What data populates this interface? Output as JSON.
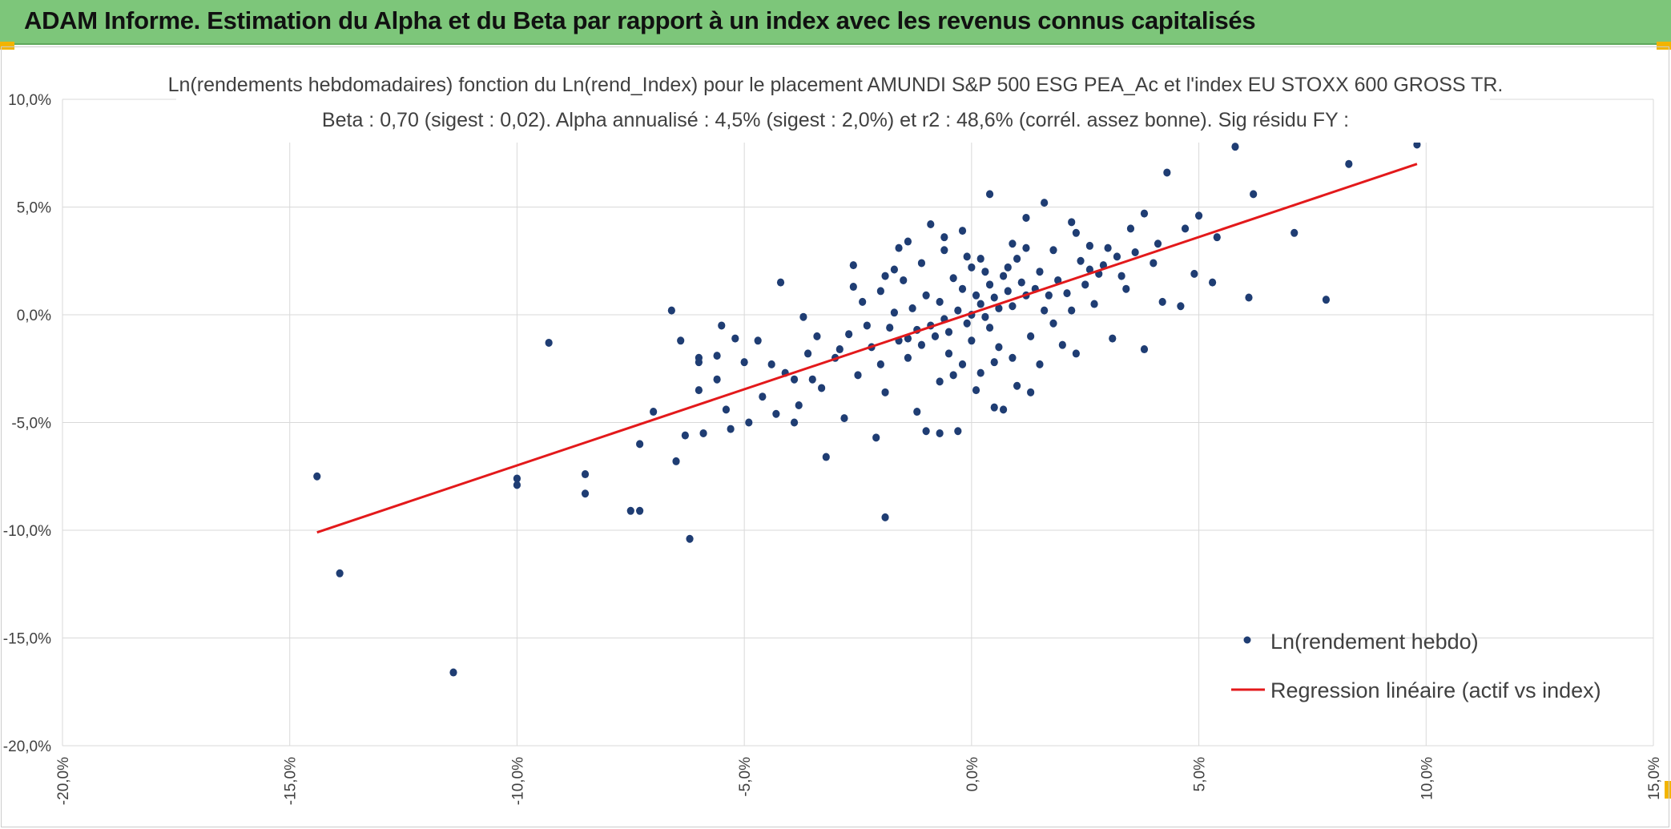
{
  "header": {
    "title": "ADAM Informe. Estimation du Alpha et du Beta par rapport à un index avec les revenus connus capitalisés"
  },
  "colors": {
    "header_bg": "#7dc67a",
    "points": "#1f3d73",
    "regression": "#e3191b",
    "grid": "#d9d9d9",
    "accent": "#f2b400"
  },
  "chart_data": {
    "type": "scatter",
    "title": "Ln(rendements hebdomadaires) fonction du Ln(rend_Index) pour le placement AMUNDI S&P 500 ESG PEA_Ac et l'index EU STOXX 600 GROSS TR.",
    "subtitle": "Beta : 0,70 (sigest : 0,02). Alpha annualisé : 4,5% (sigest : 2,0%) et r2 : 48,6% (corrél. assez bonne). Sig résidu FY :",
    "xlim": [
      -20,
      15
    ],
    "ylim": [
      -20,
      10
    ],
    "x_ticks": [
      "-20,0%",
      "-15,0%",
      "-10,0%",
      "-5,0%",
      "0,0%",
      "5,0%",
      "10,0%",
      "15,0%"
    ],
    "y_ticks": [
      "10,0%",
      "5,0%",
      "0,0%",
      "-5,0%",
      "-10,0%",
      "-15,0%",
      "-20,0%"
    ],
    "grid": true,
    "legend_position": "bottom-right",
    "series": [
      {
        "name": "Ln(rendement hebdo)",
        "kind": "points",
        "points": [
          [
            -14.4,
            -7.5
          ],
          [
            -13.9,
            -12.0
          ],
          [
            -11.4,
            -16.6
          ],
          [
            -9.3,
            -1.3
          ],
          [
            -10.0,
            -7.6
          ],
          [
            -10.0,
            -7.9
          ],
          [
            -8.5,
            -7.4
          ],
          [
            -8.5,
            -8.3
          ],
          [
            -7.5,
            -9.1
          ],
          [
            -7.3,
            -9.1
          ],
          [
            -7.3,
            -6.0
          ],
          [
            -7.0,
            -4.5
          ],
          [
            -6.6,
            0.2
          ],
          [
            -6.4,
            -1.2
          ],
          [
            -6.3,
            -5.6
          ],
          [
            -6.2,
            -10.4
          ],
          [
            -6.5,
            -6.8
          ],
          [
            -6.0,
            -3.5
          ],
          [
            -6.0,
            -2.2
          ],
          [
            -6.0,
            -2.0
          ],
          [
            -5.9,
            -5.5
          ],
          [
            -5.6,
            -3.0
          ],
          [
            -5.6,
            -1.9
          ],
          [
            -5.5,
            -0.5
          ],
          [
            -5.4,
            -4.4
          ],
          [
            -5.3,
            -5.3
          ],
          [
            -5.2,
            -1.1
          ],
          [
            -5.0,
            -2.2
          ],
          [
            -4.9,
            -5.0
          ],
          [
            -4.7,
            -1.2
          ],
          [
            -4.2,
            1.5
          ],
          [
            -4.1,
            -2.7
          ],
          [
            -3.9,
            -5.0
          ],
          [
            -3.7,
            -0.1
          ],
          [
            -3.5,
            -3.0
          ],
          [
            -3.2,
            -6.6
          ],
          [
            -2.8,
            -4.8
          ],
          [
            -2.6,
            2.3
          ],
          [
            -2.3,
            -0.5
          ],
          [
            -2.1,
            -5.7
          ],
          [
            -2.0,
            1.1
          ],
          [
            -1.9,
            -3.6
          ],
          [
            -1.9,
            -9.4
          ],
          [
            -1.7,
            2.1
          ],
          [
            -1.6,
            3.1
          ],
          [
            -1.4,
            -1.1
          ],
          [
            -1.4,
            3.4
          ],
          [
            -1.2,
            -4.5
          ],
          [
            -1.0,
            -5.4
          ],
          [
            -0.9,
            4.2
          ],
          [
            -0.7,
            -5.5
          ],
          [
            -0.6,
            3.6
          ],
          [
            -0.5,
            -1.8
          ],
          [
            -0.3,
            -5.4
          ],
          [
            -0.2,
            3.9
          ],
          [
            0.0,
            2.2
          ],
          [
            0.1,
            -3.5
          ],
          [
            0.2,
            2.6
          ],
          [
            0.4,
            5.6
          ],
          [
            0.5,
            -4.3
          ],
          [
            0.7,
            -4.4
          ],
          [
            0.9,
            3.3
          ],
          [
            1.0,
            -3.3
          ],
          [
            1.2,
            4.5
          ],
          [
            1.3,
            -3.6
          ],
          [
            1.6,
            5.2
          ],
          [
            1.6,
            0.2
          ],
          [
            1.8,
            3.0
          ],
          [
            2.0,
            -1.4
          ],
          [
            2.2,
            4.3
          ],
          [
            2.3,
            3.8
          ],
          [
            2.6,
            2.1
          ],
          [
            2.7,
            0.5
          ],
          [
            3.0,
            3.1
          ],
          [
            3.1,
            -1.1
          ],
          [
            3.3,
            1.8
          ],
          [
            3.5,
            4.0
          ],
          [
            3.8,
            4.7
          ],
          [
            3.8,
            -1.6
          ],
          [
            4.0,
            2.4
          ],
          [
            4.2,
            0.6
          ],
          [
            4.3,
            6.6
          ],
          [
            4.6,
            0.4
          ],
          [
            4.7,
            4.0
          ],
          [
            4.9,
            1.9
          ],
          [
            5.0,
            4.6
          ],
          [
            5.3,
            1.5
          ],
          [
            5.4,
            3.6
          ],
          [
            5.8,
            7.8
          ],
          [
            6.1,
            0.8
          ],
          [
            6.2,
            5.6
          ],
          [
            7.1,
            3.8
          ],
          [
            7.8,
            0.7
          ],
          [
            8.3,
            7.0
          ],
          [
            9.8,
            7.9
          ],
          [
            -0.3,
            0.2
          ],
          [
            -0.1,
            -0.4
          ],
          [
            0.2,
            0.5
          ],
          [
            0.3,
            -0.1
          ],
          [
            0.5,
            0.8
          ],
          [
            0.6,
            0.3
          ],
          [
            0.8,
            1.1
          ],
          [
            0.9,
            0.4
          ],
          [
            1.1,
            1.5
          ],
          [
            1.2,
            0.9
          ],
          [
            -0.5,
            -0.8
          ],
          [
            -0.6,
            -0.2
          ],
          [
            -0.8,
            -1.0
          ],
          [
            -0.9,
            -0.5
          ],
          [
            -1.1,
            -1.4
          ],
          [
            -1.2,
            -0.7
          ],
          [
            0.0,
            0.0
          ],
          [
            0.1,
            0.9
          ],
          [
            -0.2,
            1.2
          ],
          [
            0.4,
            -0.6
          ],
          [
            0.7,
            1.8
          ],
          [
            1.4,
            1.2
          ],
          [
            1.5,
            2.0
          ],
          [
            1.7,
            0.9
          ],
          [
            1.9,
            1.6
          ],
          [
            2.1,
            1.0
          ],
          [
            2.4,
            2.5
          ],
          [
            2.5,
            1.4
          ],
          [
            2.8,
            1.9
          ],
          [
            3.2,
            2.7
          ],
          [
            -1.4,
            -2.0
          ],
          [
            -1.6,
            -1.2
          ],
          [
            -1.8,
            -0.6
          ],
          [
            -2.0,
            -2.3
          ],
          [
            -2.2,
            -1.5
          ],
          [
            -2.5,
            -2.8
          ],
          [
            -2.7,
            -0.9
          ],
          [
            -3.0,
            -2.0
          ],
          [
            -3.3,
            -3.4
          ],
          [
            -3.6,
            -1.8
          ],
          [
            -3.9,
            -3.0
          ],
          [
            -4.4,
            -2.3
          ],
          [
            -4.6,
            -3.8
          ],
          [
            -0.4,
            1.7
          ],
          [
            0.3,
            2.0
          ],
          [
            0.6,
            -1.5
          ],
          [
            0.9,
            -2.0
          ],
          [
            1.3,
            -1.0
          ],
          [
            1.8,
            -0.4
          ],
          [
            2.2,
            0.2
          ],
          [
            -0.7,
            0.6
          ],
          [
            -1.0,
            0.9
          ],
          [
            -1.3,
            0.3
          ],
          [
            -1.5,
            1.6
          ],
          [
            -1.7,
            0.1
          ],
          [
            -0.2,
            -2.3
          ],
          [
            -0.4,
            -2.8
          ],
          [
            -0.7,
            -3.1
          ],
          [
            0.2,
            -2.7
          ],
          [
            0.5,
            -2.2
          ],
          [
            1.0,
            2.6
          ],
          [
            1.2,
            3.1
          ],
          [
            0.8,
            2.2
          ],
          [
            0.4,
            1.4
          ],
          [
            0.0,
            -1.2
          ],
          [
            -0.1,
            2.7
          ],
          [
            2.6,
            3.2
          ],
          [
            2.9,
            2.3
          ],
          [
            3.4,
            1.2
          ],
          [
            3.6,
            2.9
          ],
          [
            4.1,
            3.3
          ],
          [
            1.5,
            -2.3
          ],
          [
            2.3,
            -1.8
          ],
          [
            -2.4,
            0.6
          ],
          [
            -2.9,
            -1.6
          ],
          [
            -3.4,
            -1.0
          ],
          [
            -3.8,
            -4.2
          ],
          [
            -4.3,
            -4.6
          ],
          [
            -0.6,
            3.0
          ],
          [
            -1.1,
            2.4
          ],
          [
            -1.9,
            1.8
          ],
          [
            -2.6,
            1.3
          ]
        ]
      },
      {
        "name": "Regression linéaire (actif vs index)",
        "kind": "line",
        "points": [
          [
            -14.4,
            -10.1
          ],
          [
            9.8,
            7.0
          ]
        ]
      }
    ]
  }
}
